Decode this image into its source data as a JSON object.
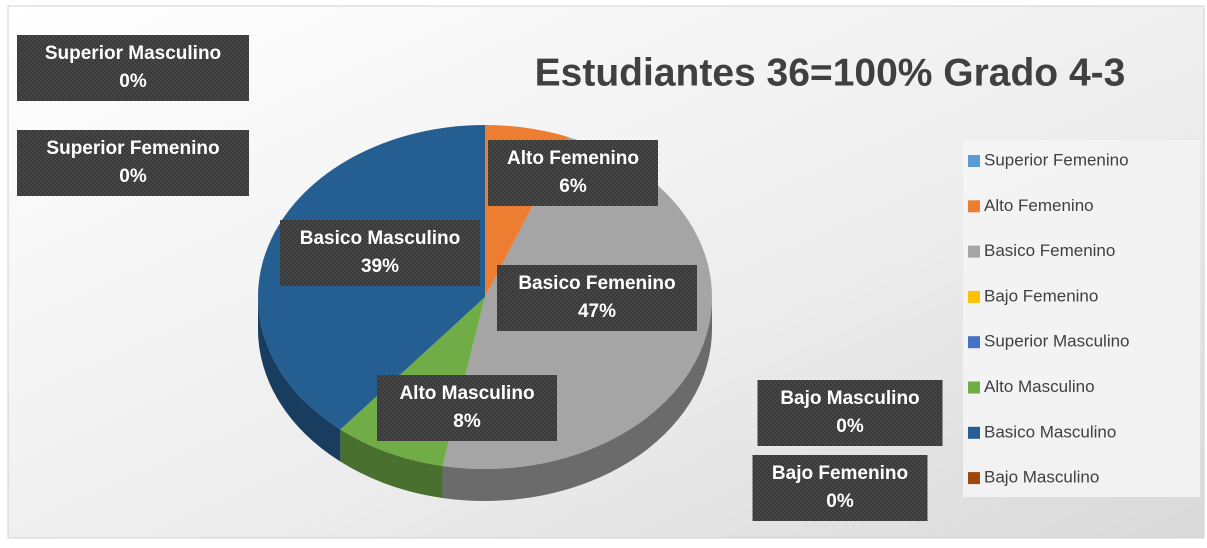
{
  "chart_data": {
    "type": "pie",
    "title": "Estudiantes 36=100% Grado 4-3",
    "categories": [
      "Superior Femenino",
      "Alto Femenino",
      "Basico Femenino",
      "Bajo Femenino",
      "Superior Masculino",
      "Alto Masculino",
      "Basico Masculino",
      "Bajo Masculino"
    ],
    "values": [
      0,
      6,
      47,
      0,
      0,
      8,
      39,
      0
    ],
    "value_labels": [
      "0%",
      "6%",
      "47%",
      "0%",
      "0%",
      "8%",
      "39%",
      "0%"
    ],
    "colors": [
      "#5B9BD5",
      "#ED7D31",
      "#A5A5A5",
      "#FFC000",
      "#4472C4",
      "#70AD47",
      "#255E91",
      "#9E480E"
    ],
    "legend": "right"
  }
}
